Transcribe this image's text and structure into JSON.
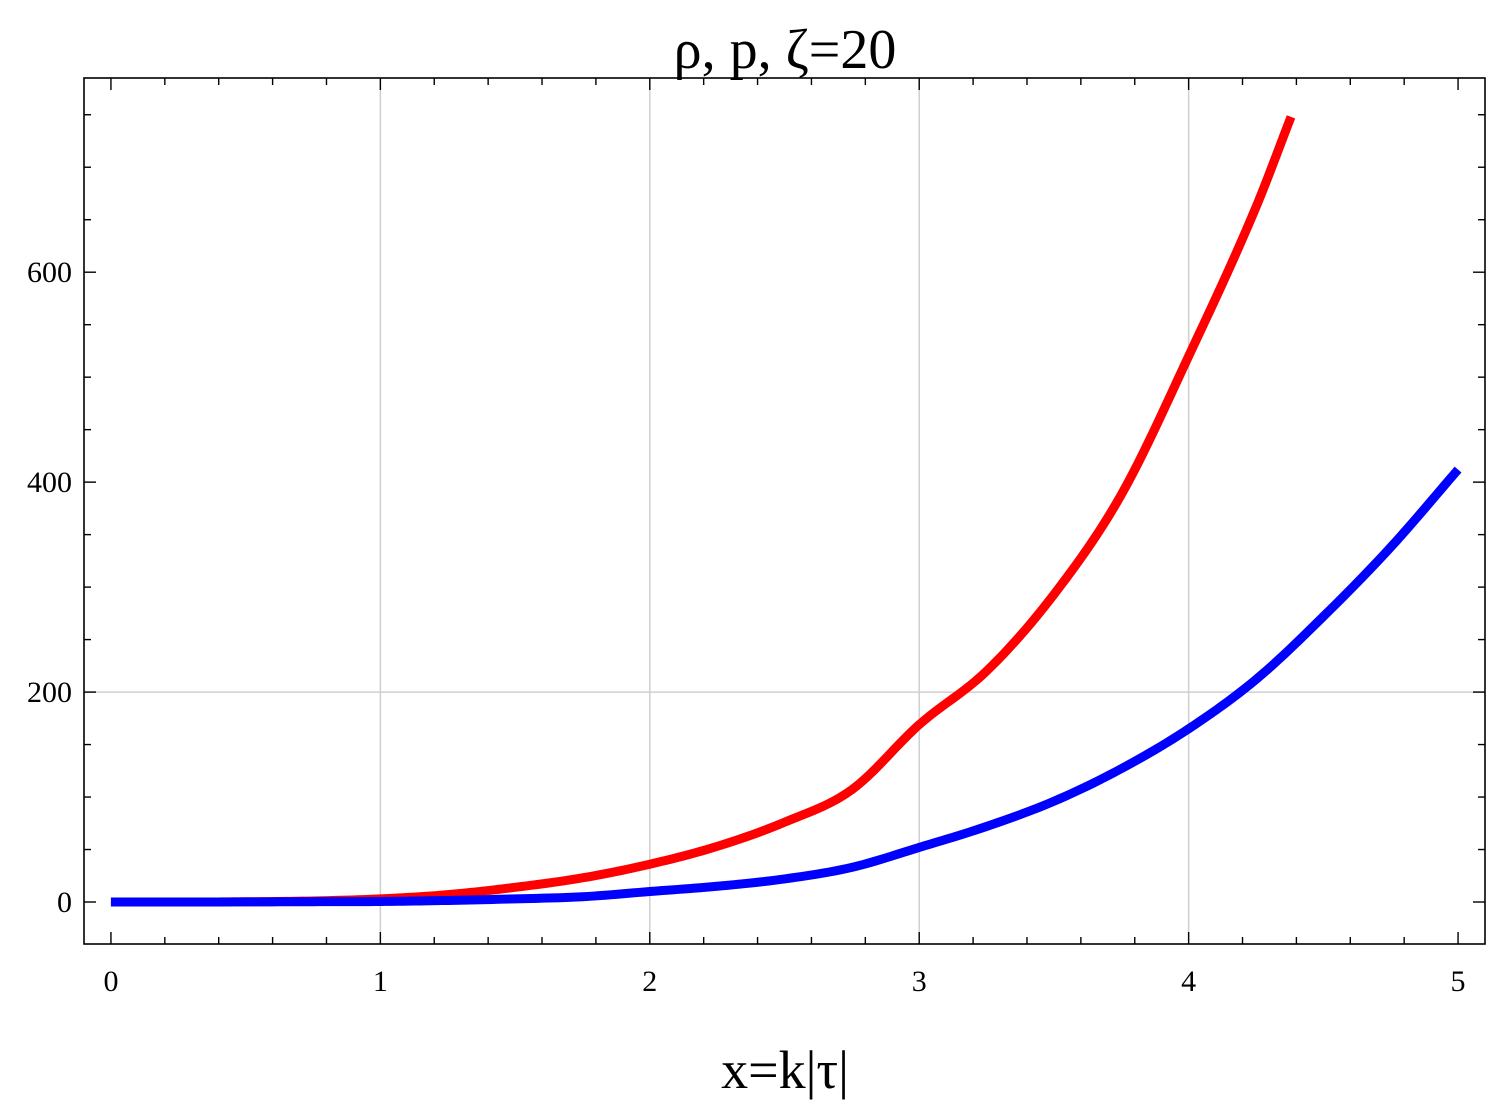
{
  "chart_data": {
    "type": "line",
    "title": "ρ, p, ζ=20",
    "xlabel": "x=k|τ|",
    "ylabel": "",
    "xlim": [
      -0.1,
      5.1
    ],
    "ylim": [
      -40,
      785
    ],
    "x_ticks": [
      0,
      1,
      2,
      3,
      4,
      5
    ],
    "x_tick_labels": [
      "0",
      "1",
      "2",
      "3",
      "4",
      "5"
    ],
    "y_ticks": [
      0,
      200,
      400,
      600
    ],
    "y_tick_labels": [
      "0",
      "200",
      "400",
      "600"
    ],
    "grid": true,
    "grid_x": [
      1,
      2,
      3,
      4
    ],
    "grid_y": [
      200
    ],
    "series": [
      {
        "color": "#ff0000",
        "x": [
          0,
          0.25,
          0.5,
          0.75,
          1.0,
          1.25,
          1.5,
          1.75,
          2.0,
          2.25,
          2.5,
          2.75,
          3.0,
          3.25,
          3.5,
          3.75,
          4.0,
          4.25,
          4.38
        ],
        "y": [
          0,
          0.01,
          0.2,
          1.0,
          3,
          7,
          14,
          23,
          36,
          53,
          76,
          107,
          169,
          220,
          293,
          388,
          520,
          662,
          748
        ]
      },
      {
        "color": "#0000ff",
        "x": [
          0,
          0.25,
          0.5,
          0.75,
          1.0,
          1.25,
          1.5,
          1.75,
          2.0,
          2.25,
          2.5,
          2.75,
          3.0,
          3.25,
          3.5,
          3.75,
          4.0,
          4.25,
          4.5,
          4.75,
          5.0
        ],
        "y": [
          0,
          0.01,
          0.1,
          0.3,
          0.5,
          1.5,
          3,
          5,
          10,
          15,
          22,
          33,
          52,
          72,
          96,
          127,
          165,
          212,
          272,
          338,
          412
        ]
      }
    ]
  }
}
